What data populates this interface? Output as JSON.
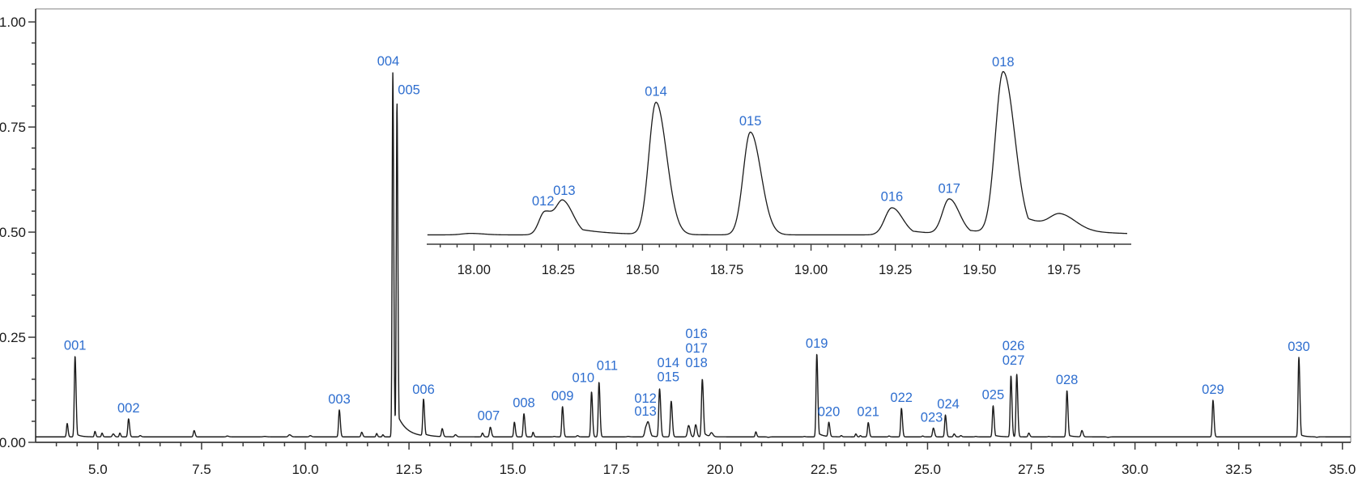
{
  "figure": {
    "kind": "chromatogram",
    "background": "#ffffff"
  },
  "colors": {
    "trace": "#1b1b1b",
    "axis": "#3a3a3a",
    "frame_light": "#ababab",
    "tick_label": "#1a1a1a",
    "peak_label": "#2e6ecf"
  },
  "chart_data": {
    "type": "line",
    "title": "",
    "xlabel": "",
    "ylabel": "",
    "grid": false,
    "legend": "none",
    "main": {
      "x_range": [
        3.5,
        35.2
      ],
      "y_range": [
        0,
        1.031
      ],
      "x_major_ticks": [
        5.0,
        7.5,
        10.0,
        12.5,
        15.0,
        17.5,
        20.0,
        22.5,
        25.0,
        27.5,
        30.0,
        32.5,
        35.0
      ],
      "x_tick_labels": [
        "5.0",
        "7.5",
        "10.0",
        "12.5",
        "15.0",
        "17.5",
        "20.0",
        "22.5",
        "25.0",
        "27.5",
        "30.0",
        "32.5",
        "35.0"
      ],
      "x_minor_step": 0.5,
      "y_major_ticks": [
        0,
        0.25,
        0.5,
        0.75,
        1.0
      ],
      "y_tick_labels": [
        "0.00",
        "0.25",
        "0.50",
        "0.75",
        "1.00"
      ],
      "y_minor_step": 0.05,
      "baseline": 0.013,
      "peaks": [
        {
          "id": "001",
          "t": 4.45,
          "apex": 0.205,
          "sigma": 0.018,
          "tail_amp": 0.05,
          "tail_tau": 0.1
        },
        {
          "id": "002",
          "t": 5.74,
          "apex": 0.056,
          "sigma": 0.018
        },
        {
          "id": "003",
          "t": 10.82,
          "apex": 0.077,
          "sigma": 0.018
        },
        {
          "id": "004",
          "t": 12.11,
          "apex": 0.879,
          "sigma": 0.016
        },
        {
          "id": "005",
          "t": 12.21,
          "apex": 0.808,
          "sigma": 0.016,
          "tail_amp": 0.07,
          "tail_tau": 0.22
        },
        {
          "id": "006",
          "t": 12.85,
          "apex": 0.1,
          "sigma": 0.018,
          "tail_amp": 0.06,
          "tail_tau": 0.15
        },
        {
          "id": "007",
          "t": 14.46,
          "apex": 0.036,
          "sigma": 0.02
        },
        {
          "id": "008",
          "t": 15.27,
          "apex": 0.068,
          "sigma": 0.018
        },
        {
          "id": "009",
          "t": 16.2,
          "apex": 0.085,
          "sigma": 0.018
        },
        {
          "id": "010",
          "t": 16.9,
          "apex": 0.12,
          "sigma": 0.018
        },
        {
          "id": "011",
          "t": 17.08,
          "apex": 0.143,
          "sigma": 0.018
        },
        {
          "id": "012",
          "t": 18.21,
          "apex": 0.034,
          "sigma": 0.028
        },
        {
          "id": "013",
          "t": 18.27,
          "apex": 0.042,
          "sigma": 0.03,
          "tail_amp": 0.25,
          "tail_tau": 0.08
        },
        {
          "id": "014",
          "t": 18.54,
          "apex": 0.127,
          "sigma": 0.02
        },
        {
          "id": "015",
          "t": 18.82,
          "apex": 0.098,
          "sigma": 0.02
        },
        {
          "id": "016",
          "t": 19.24,
          "apex": 0.04,
          "sigma": 0.026
        },
        {
          "id": "017",
          "t": 19.41,
          "apex": 0.042,
          "sigma": 0.022
        },
        {
          "id": "018",
          "t": 19.57,
          "apex": 0.15,
          "sigma": 0.02,
          "tail_amp": 0.12,
          "tail_tau": 0.08
        },
        {
          "id": "019",
          "t": 22.33,
          "apex": 0.21,
          "sigma": 0.018,
          "tail_amp": 0.06,
          "tail_tau": 0.12
        },
        {
          "id": "020",
          "t": 22.62,
          "apex": 0.047,
          "sigma": 0.018
        },
        {
          "id": "021",
          "t": 23.57,
          "apex": 0.047,
          "sigma": 0.018
        },
        {
          "id": "022",
          "t": 24.37,
          "apex": 0.081,
          "sigma": 0.018
        },
        {
          "id": "023",
          "t": 25.14,
          "apex": 0.034,
          "sigma": 0.02
        },
        {
          "id": "024",
          "t": 25.43,
          "apex": 0.065,
          "sigma": 0.018
        },
        {
          "id": "025",
          "t": 26.58,
          "apex": 0.087,
          "sigma": 0.018,
          "tail_amp": 0.07,
          "tail_tau": 0.12
        },
        {
          "id": "026",
          "t": 27.01,
          "apex": 0.158,
          "sigma": 0.018
        },
        {
          "id": "027",
          "t": 27.15,
          "apex": 0.162,
          "sigma": 0.018
        },
        {
          "id": "028",
          "t": 28.36,
          "apex": 0.123,
          "sigma": 0.018,
          "tail_amp": 0.05,
          "tail_tau": 0.1
        },
        {
          "id": "029",
          "t": 31.88,
          "apex": 0.1,
          "sigma": 0.018
        },
        {
          "id": "030",
          "t": 33.95,
          "apex": 0.202,
          "sigma": 0.018,
          "tail_amp": 0.04,
          "tail_tau": 0.1
        }
      ],
      "unlabeled_features": [
        [
          4.26,
          0.045,
          0.016
        ],
        [
          4.93,
          0.026,
          0.015
        ],
        [
          5.1,
          0.022,
          0.015
        ],
        [
          5.37,
          0.02,
          0.022
        ],
        [
          5.53,
          0.022,
          0.015
        ],
        [
          6.02,
          0.016,
          0.02
        ],
        [
          7.32,
          0.028,
          0.018
        ],
        [
          8.12,
          0.015,
          0.025
        ],
        [
          9.02,
          0.014,
          0.035
        ],
        [
          9.62,
          0.018,
          0.028
        ],
        [
          10.12,
          0.016,
          0.022
        ],
        [
          11.36,
          0.024,
          0.018
        ],
        [
          11.72,
          0.021,
          0.015
        ],
        [
          11.87,
          0.018,
          0.015
        ],
        [
          13.3,
          0.032,
          0.018
        ],
        [
          13.62,
          0.018,
          0.022
        ],
        [
          14.27,
          0.022,
          0.018
        ],
        [
          15.04,
          0.048,
          0.017
        ],
        [
          15.49,
          0.024,
          0.015
        ],
        [
          16.0,
          0.014,
          0.02
        ],
        [
          16.56,
          0.016,
          0.02
        ],
        [
          17.78,
          0.014,
          0.028
        ],
        [
          19.79,
          0.022,
          0.028
        ],
        [
          20.16,
          0.013,
          0.025
        ],
        [
          20.86,
          0.025,
          0.016
        ],
        [
          21.16,
          0.012,
          0.025
        ],
        [
          22.03,
          0.014,
          0.018
        ],
        [
          22.92,
          0.016,
          0.016
        ],
        [
          23.27,
          0.02,
          0.016
        ],
        [
          23.38,
          0.016,
          0.014
        ],
        [
          24.07,
          0.015,
          0.018
        ],
        [
          24.88,
          0.015,
          0.018
        ],
        [
          25.64,
          0.02,
          0.018
        ],
        [
          25.8,
          0.016,
          0.018
        ],
        [
          26.16,
          0.014,
          0.022
        ],
        [
          27.44,
          0.022,
          0.018
        ],
        [
          27.92,
          0.014,
          0.018
        ],
        [
          28.72,
          0.028,
          0.02
        ],
        [
          29.35,
          0.012,
          0.028
        ],
        [
          34.38,
          0.012,
          0.022
        ]
      ],
      "labels": [
        {
          "text": "001",
          "t": 4.45,
          "v": 0.232
        },
        {
          "text": "002",
          "t": 5.74,
          "v": 0.083
        },
        {
          "text": "003",
          "t": 10.82,
          "v": 0.104
        },
        {
          "text": "004",
          "t": 12.0,
          "v": 0.908
        },
        {
          "text": "005",
          "t": 12.5,
          "v": 0.84
        },
        {
          "text": "006",
          "t": 12.85,
          "v": 0.127
        },
        {
          "text": "007",
          "t": 14.42,
          "v": 0.064
        },
        {
          "text": "008",
          "t": 15.27,
          "v": 0.095
        },
        {
          "text": "009",
          "t": 16.2,
          "v": 0.112
        },
        {
          "text": "010",
          "t": 16.7,
          "v": 0.155
        },
        {
          "text": "011",
          "t": 17.28,
          "v": 0.184
        },
        {
          "text": "012",
          "t": 18.2,
          "v": 0.106
        },
        {
          "text": "013",
          "t": 18.2,
          "v": 0.075
        },
        {
          "text": "014",
          "t": 18.75,
          "v": 0.19
        },
        {
          "text": "015",
          "t": 18.75,
          "v": 0.157
        },
        {
          "text": "016",
          "t": 19.43,
          "v": 0.26
        },
        {
          "text": "017",
          "t": 19.43,
          "v": 0.225
        },
        {
          "text": "018",
          "t": 19.43,
          "v": 0.19
        },
        {
          "text": "019",
          "t": 22.33,
          "v": 0.237
        },
        {
          "text": "020",
          "t": 22.62,
          "v": 0.074
        },
        {
          "text": "021",
          "t": 23.57,
          "v": 0.074
        },
        {
          "text": "022",
          "t": 24.37,
          "v": 0.108
        },
        {
          "text": "023",
          "t": 25.1,
          "v": 0.061
        },
        {
          "text": "024",
          "t": 25.5,
          "v": 0.092
        },
        {
          "text": "025",
          "t": 26.58,
          "v": 0.114
        },
        {
          "text": "026",
          "t": 27.07,
          "v": 0.231
        },
        {
          "text": "027",
          "t": 27.07,
          "v": 0.196
        },
        {
          "text": "028",
          "t": 28.36,
          "v": 0.15
        },
        {
          "text": "029",
          "t": 31.88,
          "v": 0.127
        },
        {
          "text": "030",
          "t": 33.95,
          "v": 0.229
        }
      ]
    },
    "inset": {
      "x_range": [
        17.86,
        19.95
      ],
      "x_major_ticks": [
        18.0,
        18.25,
        18.5,
        18.75,
        19.0,
        19.25,
        19.5,
        19.75
      ],
      "x_tick_labels": [
        "18.00",
        "18.25",
        "18.50",
        "18.75",
        "19.00",
        "19.25",
        "19.50",
        "19.75"
      ],
      "x_minor_step": 0.05,
      "baseline": 0.4935,
      "peaks": [
        {
          "id": "012",
          "t": 18.21,
          "apex": 0.548,
          "sigma": 0.017
        },
        {
          "id": "013",
          "t": 18.265,
          "apex": 0.571,
          "sigma": 0.02,
          "tail_amp": 0.3,
          "tail_tau": 0.09
        },
        {
          "id": "014",
          "t": 18.54,
          "apex": 0.808,
          "sigma": 0.021
        },
        {
          "id": "015",
          "t": 18.82,
          "apex": 0.738,
          "sigma": 0.021
        },
        {
          "id": "016",
          "t": 19.24,
          "apex": 0.558,
          "sigma": 0.021,
          "tail_amp": 0.3,
          "tail_tau": 0.08
        },
        {
          "id": "017",
          "t": 19.41,
          "apex": 0.577,
          "sigma": 0.02,
          "tail_amp": 0.25,
          "tail_tau": 0.08
        },
        {
          "id": "018",
          "t": 19.57,
          "apex": 0.879,
          "sigma": 0.023,
          "tail_amp": 0.18,
          "tail_tau": 0.12
        }
      ],
      "unlabeled_features": [
        [
          17.99,
          0.497,
          0.025
        ],
        [
          19.74,
          0.527,
          0.03
        ]
      ],
      "labels": [
        {
          "text": "012",
          "t": 18.205,
          "v": 0.575
        },
        {
          "text": "013",
          "t": 18.268,
          "v": 0.6
        },
        {
          "text": "014",
          "t": 18.54,
          "v": 0.836
        },
        {
          "text": "015",
          "t": 18.82,
          "v": 0.766
        },
        {
          "text": "016",
          "t": 19.24,
          "v": 0.586
        },
        {
          "text": "017",
          "t": 19.41,
          "v": 0.605
        },
        {
          "text": "018",
          "t": 19.57,
          "v": 0.906
        }
      ]
    }
  }
}
